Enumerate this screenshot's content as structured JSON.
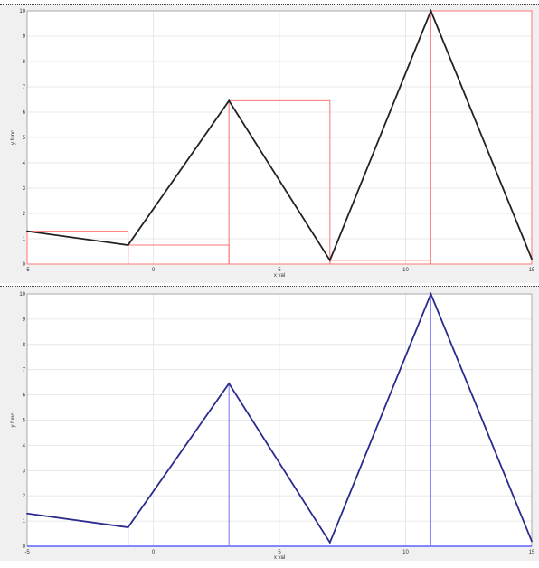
{
  "chart_data": [
    {
      "type": "line",
      "x": [
        -5,
        -1,
        3,
        7,
        11,
        15
      ],
      "series": [
        {
          "values": [
            1.3,
            0.75,
            6.45,
            0.15,
            10,
            0.2
          ],
          "color": "#222222"
        }
      ],
      "overlay": {
        "type": "rectangle-steps",
        "color": "#ff8080",
        "left_x": [
          -5,
          -1,
          3,
          7,
          11
        ],
        "right_x": [
          -1,
          3,
          7,
          11,
          15
        ],
        "heights": [
          1.3,
          0.75,
          6.45,
          0.15,
          10
        ]
      },
      "xlabel": "x val",
      "ylabel": "y func",
      "xlim": [
        -5,
        15
      ],
      "ylim": [
        0,
        10
      ],
      "x_ticks": [
        "-5",
        "0",
        "5",
        "10",
        "15"
      ],
      "y_ticks": [
        "0",
        "1",
        "2",
        "3",
        "4",
        "5",
        "6",
        "7",
        "8",
        "9",
        "10"
      ],
      "grid": true
    },
    {
      "type": "line",
      "x": [
        -5,
        -1,
        3,
        7,
        11,
        15
      ],
      "series": [
        {
          "values": [
            1.3,
            0.75,
            6.45,
            0.15,
            10,
            0.2
          ],
          "color": "#2b2b8c"
        }
      ],
      "stems": {
        "color": "#8080ff",
        "x": [
          -1,
          3,
          11
        ]
      },
      "baseline_color": "#4040ff",
      "xlabel": "x val",
      "ylabel": "y func",
      "xlim": [
        -5,
        15
      ],
      "ylim": [
        0,
        10
      ],
      "x_ticks": [
        "-5",
        "0",
        "5",
        "10",
        "15"
      ],
      "y_ticks": [
        "0",
        "1",
        "2",
        "3",
        "4",
        "5",
        "6",
        "7",
        "8",
        "9",
        "10"
      ],
      "grid": true
    }
  ]
}
